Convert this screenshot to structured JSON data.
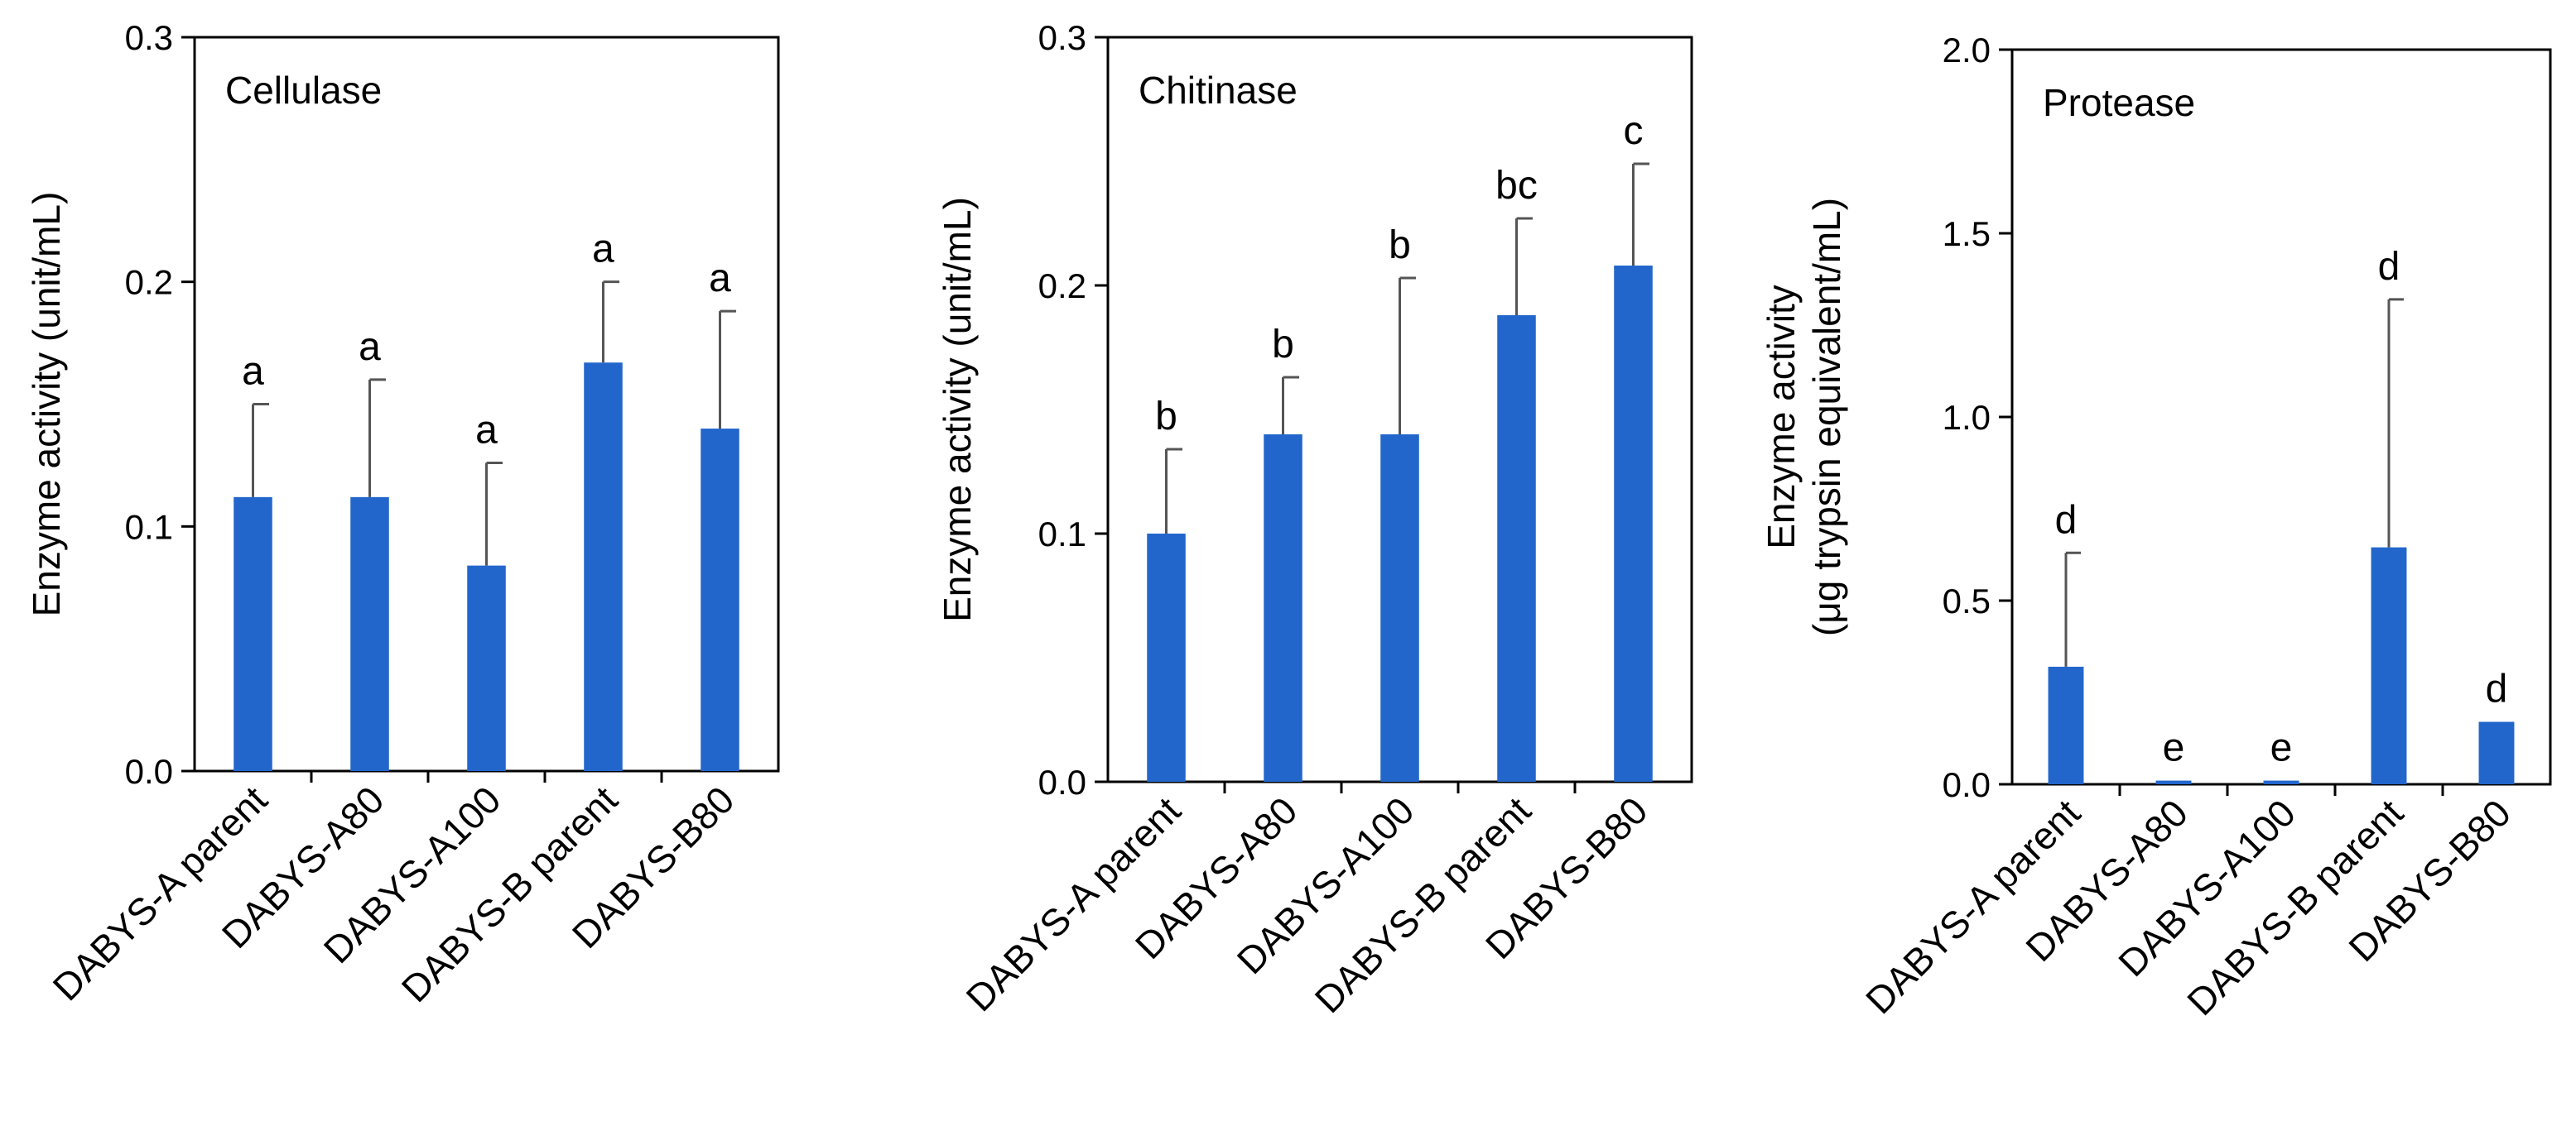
{
  "colors": {
    "bar": "#2266cc",
    "axis": "#000000",
    "error": "#555555"
  },
  "chart_data": [
    {
      "type": "bar",
      "title": "Cellulase",
      "ylabel": [
        "Enzyme activity (unit/mL)"
      ],
      "ylim": [
        0,
        0.3
      ],
      "yticks": [
        0,
        0.1,
        0.2,
        0.3
      ],
      "ytick_labels": [
        "0.0",
        "0.1",
        "0.2",
        "0.3"
      ],
      "categories": [
        "DABYS-A parent",
        "DABYS-A80",
        "DABYS-A100",
        "DABYS-B parent",
        "DABYS-B80"
      ],
      "values": [
        0.112,
        0.112,
        0.084,
        0.167,
        0.14
      ],
      "errors": [
        0.038,
        0.048,
        0.042,
        0.033,
        0.048
      ],
      "significance": [
        "a",
        "a",
        "a",
        "a",
        "a"
      ]
    },
    {
      "type": "bar",
      "title": "Chitinase",
      "ylabel": [
        "Enzyme activity (unit/mL)"
      ],
      "ylim": [
        0,
        0.3
      ],
      "yticks": [
        0,
        0.1,
        0.2,
        0.3
      ],
      "ytick_labels": [
        "0.0",
        "0.1",
        "0.2",
        "0.3"
      ],
      "categories": [
        "DABYS-A parent",
        "DABYS-A80",
        "DABYS-A100",
        "DABYS-B parent",
        "DABYS-B80"
      ],
      "values": [
        0.1,
        0.14,
        0.14,
        0.188,
        0.208
      ],
      "errors": [
        0.034,
        0.023,
        0.063,
        0.039,
        0.041
      ],
      "significance": [
        "b",
        "b",
        "b",
        "bc",
        "c"
      ]
    },
    {
      "type": "bar",
      "title": "Protease",
      "ylabel": [
        "Enzyme activity",
        "(μg trypsin equivalent/mL)"
      ],
      "ylim": [
        0,
        2.0
      ],
      "yticks": [
        0,
        0.5,
        1.0,
        1.5,
        2.0
      ],
      "ytick_labels": [
        "0.0",
        "0.5",
        "1.0",
        "1.5",
        "2.0"
      ],
      "categories": [
        "DABYS-A parent",
        "DABYS-A80",
        "DABYS-A100",
        "DABYS-B parent",
        "DABYS-B80"
      ],
      "values": [
        0.32,
        0.01,
        0.01,
        0.645,
        0.17
      ],
      "errors": [
        0.31,
        0,
        0,
        0.675,
        0
      ],
      "significance": [
        "d",
        "e",
        "e",
        "d",
        "d"
      ]
    }
  ]
}
